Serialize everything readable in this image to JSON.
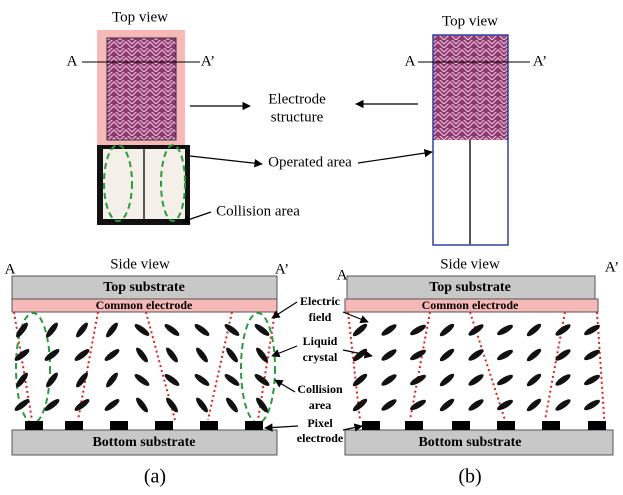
{
  "panels": [
    {
      "top_view": "Top view",
      "a": "A",
      "a_prime": "A’",
      "side_view": "Side view",
      "side_a": "A",
      "side_a_prime": "A’",
      "top_substrate": "Top substrate",
      "common_electrode": "Common  electrode",
      "bottom_substrate": "Bottom substrate",
      "caption": "(a)"
    },
    {
      "top_view": "Top view",
      "a": "A",
      "a_prime": "A’",
      "side_view": "Side view",
      "side_a": "A",
      "side_a_prime": "A’",
      "top_substrate": "Top substrate",
      "common_electrode": "Common  electrode",
      "bottom_substrate": "Bottom substrate",
      "caption": "(b)"
    }
  ],
  "labels": {
    "electrode_structure": [
      "Electrode",
      "structure"
    ],
    "operated_area": "Operated area",
    "collision_area_top": "Collision area",
    "electric_field": [
      "Electric",
      "field"
    ],
    "liquid_crystal": [
      "Liquid",
      "crystal"
    ],
    "collision_area_side": [
      "Collision",
      "area"
    ],
    "pixel_electrode": [
      "Pixel",
      "electrode"
    ]
  }
}
